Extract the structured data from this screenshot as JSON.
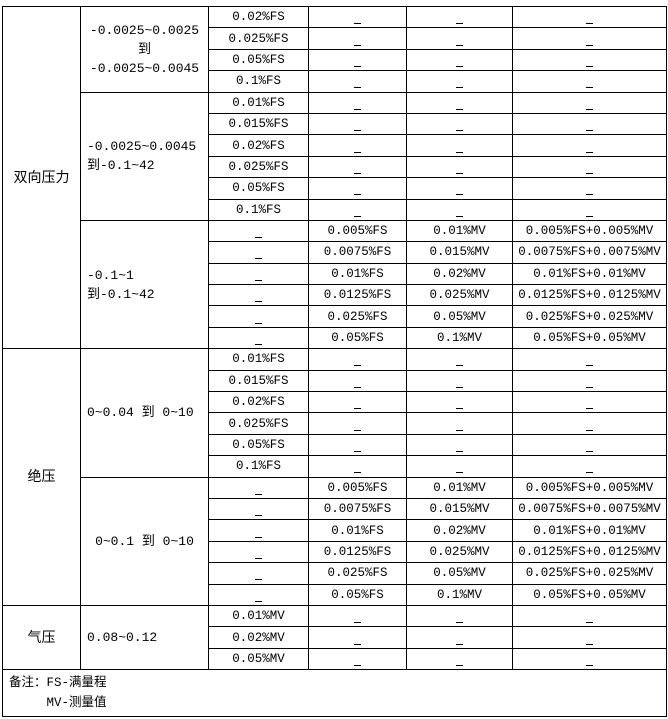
{
  "dash": "–",
  "categories": [
    {
      "name": "双向压力",
      "subgroups": [
        {
          "range": "-0.0025~0.0025\n到\n-0.0025~0.0045",
          "align": "center",
          "rows": [
            [
              "0.02%FS",
              "–",
              "–",
              "–"
            ],
            [
              "0.025%FS",
              "–",
              "–",
              "–"
            ],
            [
              "0.05%FS",
              "–",
              "–",
              "–"
            ],
            [
              "0.1%FS",
              "–",
              "–",
              "–"
            ]
          ]
        },
        {
          "range": "-0.0025~0.0045\n到-0.1~42",
          "align": "left",
          "rows": [
            [
              "0.01%FS",
              "–",
              "–",
              "–"
            ],
            [
              "0.015%FS",
              "–",
              "–",
              "–"
            ],
            [
              "0.02%FS",
              "–",
              "–",
              "–"
            ],
            [
              "0.025%FS",
              "–",
              "–",
              "–"
            ],
            [
              "0.05%FS",
              "–",
              "–",
              "–"
            ],
            [
              "0.1%FS",
              "–",
              "–",
              "–"
            ]
          ]
        },
        {
          "range": "-0.1~1 到-0.1~42",
          "align": "left",
          "rows": [
            [
              "–",
              "0.005%FS",
              "0.01%MV",
              "0.005%FS+0.005%MV"
            ],
            [
              "–",
              "0.0075%FS",
              "0.015%MV",
              "0.0075%FS+0.0075%MV"
            ],
            [
              "–",
              "0.01%FS",
              "0.02%MV",
              "0.01%FS+0.01%MV"
            ],
            [
              "–",
              "0.0125%FS",
              "0.025%MV",
              "0.0125%FS+0.0125%MV"
            ],
            [
              "–",
              "0.025%FS",
              "0.05%MV",
              "0.025%FS+0.025%MV"
            ],
            [
              "–",
              "0.05%FS",
              "0.1%MV",
              "0.05%FS+0.05%MV"
            ]
          ]
        }
      ]
    },
    {
      "name": "绝压",
      "subgroups": [
        {
          "range": "0~0.04 到 0~10",
          "align": "left",
          "rows": [
            [
              "0.01%FS",
              "–",
              "–",
              "–"
            ],
            [
              "0.015%FS",
              "–",
              "–",
              "–"
            ],
            [
              "0.02%FS",
              "–",
              "–",
              "–"
            ],
            [
              "0.025%FS",
              "–",
              "–",
              "–"
            ],
            [
              "0.05%FS",
              "–",
              "–",
              "–"
            ],
            [
              "0.1%FS",
              "–",
              "–",
              "–"
            ]
          ]
        },
        {
          "range": "0~0.1 到 0~10",
          "align": "center",
          "rows": [
            [
              "–",
              "0.005%FS",
              "0.01%MV",
              "0.005%FS+0.005%MV"
            ],
            [
              "–",
              "0.0075%FS",
              "0.015%MV",
              "0.0075%FS+0.0075%MV"
            ],
            [
              "–",
              "0.01%FS",
              "0.02%MV",
              "0.01%FS+0.01%MV"
            ],
            [
              "–",
              "0.0125%FS",
              "0.025%MV",
              "0.0125%FS+0.0125%MV"
            ],
            [
              "–",
              "0.025%FS",
              "0.05%MV",
              "0.025%FS+0.025%MV"
            ],
            [
              "–",
              "0.05%FS",
              "0.1%MV",
              "0.05%FS+0.05%MV"
            ]
          ]
        }
      ]
    },
    {
      "name": "气压",
      "subgroups": [
        {
          "range": "0.08~0.12",
          "align": "left",
          "rows": [
            [
              "0.01%MV",
              "–",
              "–",
              "–"
            ],
            [
              "0.02%MV",
              "–",
              "–",
              "–"
            ],
            [
              "0.05%MV",
              "–",
              "–",
              "–"
            ]
          ]
        }
      ]
    }
  ],
  "note": {
    "line1": "备注：FS-满量程",
    "line2": "     MV-测量值"
  }
}
